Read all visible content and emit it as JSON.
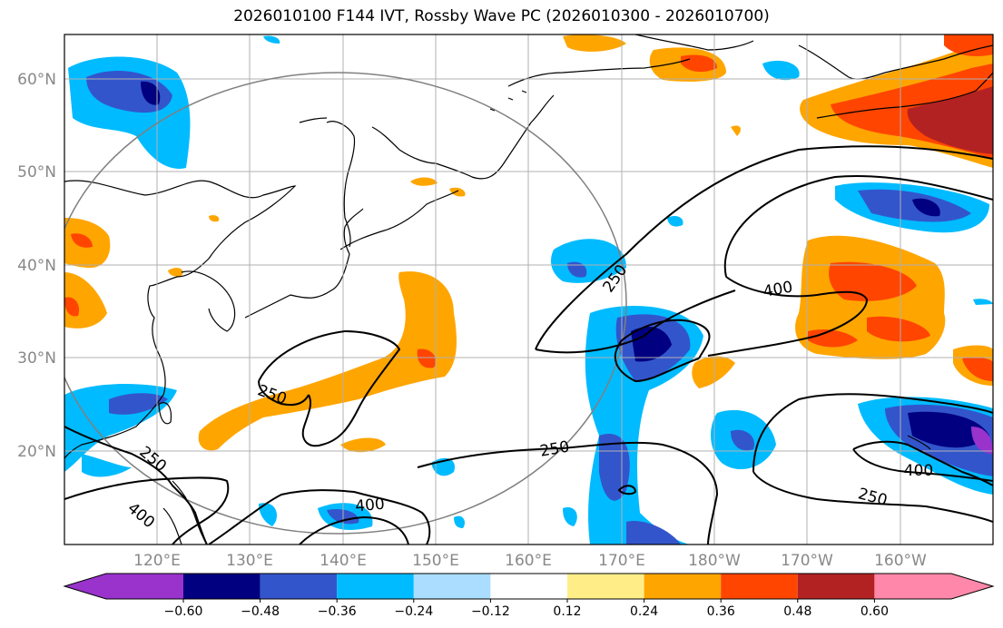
{
  "title": "2026010100 F144 IVT, Rossby Wave PC (2026010300 - 2026010700)",
  "map": {
    "lon_ticks": [
      "120°E",
      "130°E",
      "140°E",
      "150°E",
      "160°E",
      "170°E",
      "180°W",
      "170°W",
      "160°W"
    ],
    "lat_ticks": [
      "60°N",
      "50°N",
      "40°N",
      "30°N",
      "20°N"
    ],
    "lon_range": [
      110,
      210
    ],
    "lat_range": [
      10,
      65
    ],
    "contour_labels": [
      "250",
      "250",
      "250",
      "250",
      "250",
      "400",
      "400",
      "400",
      "400"
    ],
    "gridlines": true
  },
  "colorbar": {
    "ticks": [
      "−0.60",
      "−0.48",
      "−0.36",
      "−0.24",
      "−0.12",
      "0.12",
      "0.24",
      "0.36",
      "0.48",
      "0.60"
    ],
    "colors": [
      "#9933cc",
      "#000080",
      "#3355cc",
      "#00bbff",
      "#aaddff",
      "#ffffff",
      "#ffee88",
      "#ffa500",
      "#ff4500",
      "#b22222",
      "#ff88aa"
    ]
  }
}
